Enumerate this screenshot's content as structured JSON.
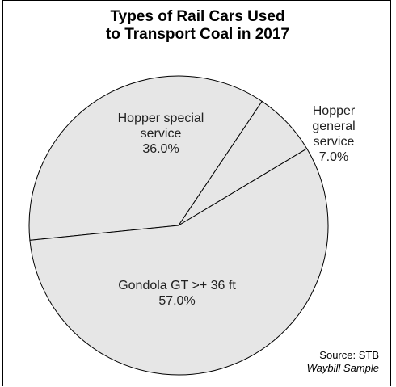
{
  "chart_data": {
    "type": "pie",
    "title_lines": [
      "Types of Rail Cars Used",
      "to Transport Coal in 2017"
    ],
    "slices": [
      {
        "label_lines": [
          "Hopper special",
          "service"
        ],
        "value": 36.0,
        "value_label": "36.0%",
        "color": "#e6e6e6"
      },
      {
        "label_lines": [
          "Hopper",
          "general",
          "service"
        ],
        "value": 7.0,
        "value_label": "7.0%",
        "color": "#e6e6e6"
      },
      {
        "label_lines": [
          "Gondola GT >+ 36 ft"
        ],
        "value": 57.0,
        "value_label": "57.0%",
        "color": "#e6e6e6"
      }
    ],
    "source": {
      "line1": "Source: STB",
      "line2": "Waybill Sample"
    },
    "legend": "none"
  }
}
